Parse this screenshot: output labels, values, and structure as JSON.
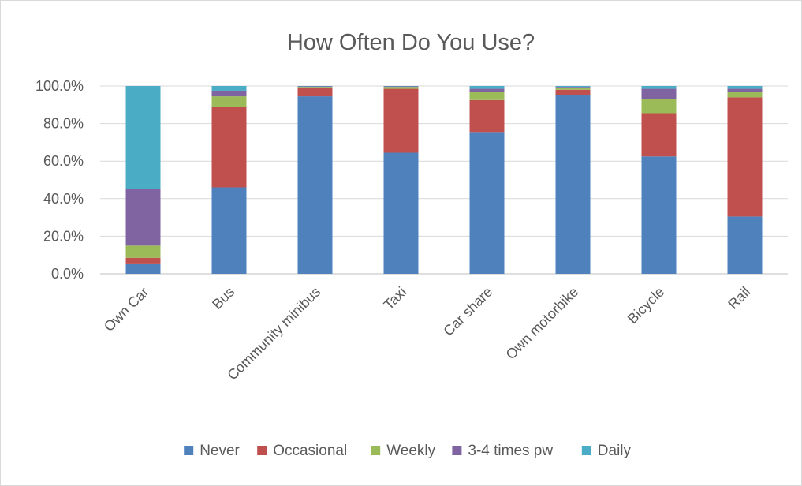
{
  "chart_data": {
    "type": "bar",
    "stacked": true,
    "title": "How Often Do You Use?",
    "categories": [
      "Own Car",
      "Bus",
      "Community minibus",
      "Taxi",
      "Car share",
      "Own motorbike",
      "Bicycle",
      "Rail"
    ],
    "series": [
      {
        "name": "Never",
        "color": "#4f81bd",
        "values": [
          5.5,
          46.0,
          94.5,
          64.5,
          75.5,
          95.0,
          62.5,
          30.5
        ]
      },
      {
        "name": "Occasional",
        "color": "#c0504d",
        "values": [
          3.0,
          43.0,
          4.5,
          34.0,
          17.0,
          3.0,
          23.0,
          63.5
        ]
      },
      {
        "name": "Weekly",
        "color": "#9bbb59",
        "values": [
          6.5,
          5.5,
          0.5,
          1.0,
          4.5,
          1.0,
          7.5,
          3.0
        ]
      },
      {
        "name": "3-4 times pw",
        "color": "#8064a2",
        "values": [
          30.0,
          3.0,
          0.3,
          0.3,
          1.5,
          0.5,
          5.5,
          1.5
        ]
      },
      {
        "name": "Daily",
        "color": "#4bacc6",
        "values": [
          55.0,
          2.5,
          0.2,
          0.2,
          1.5,
          0.5,
          1.5,
          1.5
        ]
      }
    ],
    "ylim": [
      0,
      100
    ],
    "yticks": [
      "0.0%",
      "20.0%",
      "40.0%",
      "60.0%",
      "80.0%",
      "100.0%"
    ],
    "ytick_values": [
      0,
      20,
      40,
      60,
      80,
      100
    ],
    "grid": true,
    "legend": "bottom",
    "xlabel": "",
    "ylabel": ""
  }
}
